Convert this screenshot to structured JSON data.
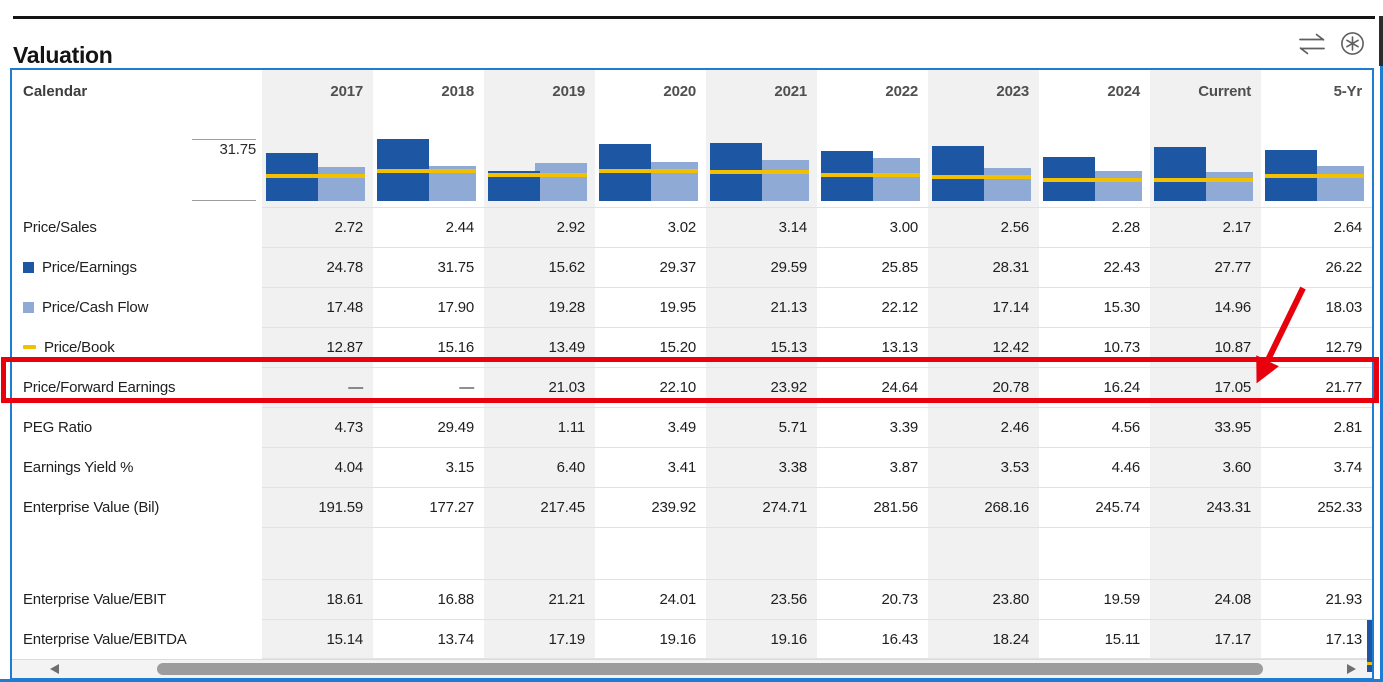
{
  "page": {
    "title": "Valuation"
  },
  "toolbar": {
    "icons": [
      "compare-arrows-icon",
      "asterisk-circle-icon"
    ]
  },
  "table": {
    "label_header": "Calendar",
    "columns": [
      "2017",
      "2018",
      "2019",
      "2020",
      "2021",
      "2022",
      "2023",
      "2024",
      "Current",
      "5-Yr"
    ],
    "axis_label": "31.75",
    "rows": [
      {
        "label": "Price/Sales",
        "values": [
          "2.72",
          "2.44",
          "2.92",
          "3.02",
          "3.14",
          "3.00",
          "2.56",
          "2.28",
          "2.17",
          "2.64"
        ]
      },
      {
        "label": "Price/Earnings",
        "legend": "pe",
        "values": [
          "24.78",
          "31.75",
          "15.62",
          "29.37",
          "29.59",
          "25.85",
          "28.31",
          "22.43",
          "27.77",
          "26.22"
        ]
      },
      {
        "label": "Price/Cash Flow",
        "legend": "pcf",
        "values": [
          "17.48",
          "17.90",
          "19.28",
          "19.95",
          "21.13",
          "22.12",
          "17.14",
          "15.30",
          "14.96",
          "18.03"
        ]
      },
      {
        "label": "Price/Book",
        "legend": "pb",
        "values": [
          "12.87",
          "15.16",
          "13.49",
          "15.20",
          "15.13",
          "13.13",
          "12.42",
          "10.73",
          "10.87",
          "12.79"
        ]
      },
      {
        "label": "Price/Forward Earnings",
        "highlighted": true,
        "values": [
          "—",
          "—",
          "21.03",
          "22.10",
          "23.92",
          "24.64",
          "20.78",
          "16.24",
          "17.05",
          "21.77"
        ]
      },
      {
        "label": "PEG Ratio",
        "values": [
          "4.73",
          "29.49",
          "1.11",
          "3.49",
          "5.71",
          "3.39",
          "2.46",
          "4.56",
          "33.95",
          "2.81"
        ]
      },
      {
        "label": "Earnings Yield %",
        "values": [
          "4.04",
          "3.15",
          "6.40",
          "3.41",
          "3.38",
          "3.87",
          "3.53",
          "4.46",
          "3.60",
          "3.74"
        ]
      },
      {
        "label": "Enterprise Value (Bil)",
        "values": [
          "191.59",
          "177.27",
          "217.45",
          "239.92",
          "274.71",
          "281.56",
          "268.16",
          "245.74",
          "243.31",
          "252.33"
        ]
      },
      {
        "label": "",
        "spacer": true,
        "values": [
          "",
          "",
          "",
          "",
          "",
          "",
          "",
          "",
          "",
          ""
        ]
      },
      {
        "label": "Enterprise Value/EBIT",
        "values": [
          "18.61",
          "16.88",
          "21.21",
          "24.01",
          "23.56",
          "20.73",
          "23.80",
          "19.59",
          "24.08",
          "21.93"
        ]
      },
      {
        "label": "Enterprise Value/EBITDA",
        "values": [
          "15.14",
          "13.74",
          "17.19",
          "19.16",
          "19.16",
          "16.43",
          "18.24",
          "15.11",
          "17.17",
          "17.13"
        ]
      }
    ]
  },
  "chart_data": {
    "type": "bar",
    "title": "",
    "categories": [
      "2017",
      "2018",
      "2019",
      "2020",
      "2021",
      "2022",
      "2023",
      "2024",
      "Current",
      "5-Yr"
    ],
    "series": [
      {
        "name": "Price/Earnings",
        "type": "bar",
        "color": "#1d56a3",
        "values": [
          24.78,
          31.75,
          15.62,
          29.37,
          29.59,
          25.85,
          28.31,
          22.43,
          27.77,
          26.22
        ]
      },
      {
        "name": "Price/Cash Flow",
        "type": "bar",
        "color": "#8fabd5",
        "values": [
          17.48,
          17.9,
          19.28,
          19.95,
          21.13,
          22.12,
          17.14,
          15.3,
          14.96,
          18.03
        ]
      },
      {
        "name": "Price/Book",
        "type": "line",
        "color": "#f3c000",
        "values": [
          12.87,
          15.16,
          13.49,
          15.2,
          15.13,
          13.13,
          12.42,
          10.73,
          10.87,
          12.79
        ]
      }
    ],
    "ylim": [
      0,
      31.75
    ],
    "axis_tick_label": "31.75",
    "grid": "off",
    "legend_position": "row-labels-left"
  },
  "annotations": {
    "highlight_row": "Price/Forward Earnings",
    "arrow_target_value": "17.05",
    "highlight_color": "#e8000d"
  },
  "colors": {
    "table_border": "#1e7cd2",
    "column_stripe": "#f1f1f1",
    "bar_price_earnings": "#1d56a3",
    "bar_price_cash_flow": "#8fabd5",
    "line_price_book": "#f3c000",
    "highlight_red": "#e8000d"
  }
}
